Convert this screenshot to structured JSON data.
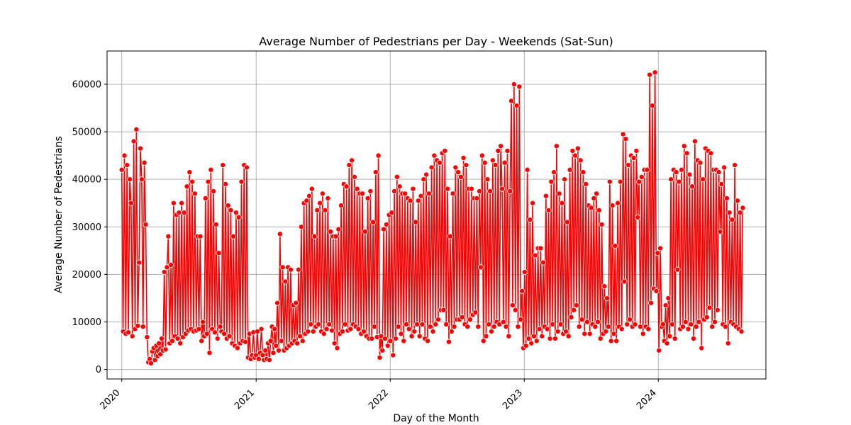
{
  "chart_data": {
    "type": "line",
    "title": "Average Number of Pedestrians per Day - Weekends (Sat-Sun)",
    "xlabel": "Day of the Month",
    "ylabel": "Average Number of Pedestrians",
    "xlim": [
      "2019-11-22",
      "2024-10-20"
    ],
    "ylim": [
      -2000,
      67000
    ],
    "x_ticks": [
      {
        "label": "2020",
        "date": "2020-01-01"
      },
      {
        "label": "2021",
        "date": "2021-01-01"
      },
      {
        "label": "2022",
        "date": "2022-01-01"
      },
      {
        "label": "2023",
        "date": "2023-01-01"
      },
      {
        "label": "2024",
        "date": "2024-01-01"
      }
    ],
    "y_ticks": [
      0,
      10000,
      20000,
      30000,
      40000,
      50000,
      60000
    ],
    "y_tick_labels": [
      "0",
      "10000",
      "20000",
      "30000",
      "40000",
      "50000",
      "60000"
    ],
    "grid": true,
    "legend": "none",
    "colors": {
      "line": "#ff0000",
      "marker_fill": "#ff0000",
      "marker_edge": "#ffffff"
    },
    "series": [
      {
        "x_start": "2020-01-01",
        "x_end": "2024-08-18",
        "values": [
          42000,
          8000,
          45000,
          7500,
          43000,
          7800,
          40000,
          35000,
          7000,
          48000,
          8500,
          50500,
          9200,
          22500,
          46500,
          40000,
          9000,
          43500,
          30500,
          6800,
          1500,
          2200,
          1300,
          3800,
          4500,
          2000,
          5000,
          2800,
          5500,
          3200,
          6500,
          4000,
          20500,
          4200,
          21500,
          28000,
          5500,
          22000,
          6000,
          35000,
          7000,
          32500,
          6500,
          33000,
          5500,
          35000,
          6800,
          33000,
          7500,
          38500,
          8200,
          41500,
          8500,
          39500,
          8000,
          37000,
          8200,
          28000,
          8500,
          28000,
          6000,
          10000,
          7000,
          36000,
          7500,
          39500,
          3500,
          42000,
          8500,
          37500,
          7800,
          30500,
          6500,
          24500,
          9000,
          8000,
          43000,
          7500,
          39000,
          6500,
          34500,
          7000,
          33500,
          5500,
          28000,
          5000,
          33000,
          4500,
          32000,
          5500,
          39500,
          6000,
          43000,
          5800,
          42500,
          2500,
          7500,
          2200,
          3000,
          7800,
          2500,
          3000,
          8000,
          2200,
          3500,
          8500,
          3000,
          2000,
          4000,
          2200,
          5500,
          2000,
          6000,
          9000,
          3500,
          8500,
          5000,
          14000,
          4000,
          28500,
          6000,
          21500,
          4000,
          18500,
          4500,
          21500,
          5000,
          21000,
          5500,
          13500,
          6000,
          14000,
          5500,
          21000,
          7000,
          30000,
          6000,
          35000,
          7500,
          35500,
          8000,
          36500,
          9500,
          38000,
          8000,
          28000,
          9000,
          33500,
          9500,
          35000,
          8000,
          37000,
          7500,
          33500,
          8500,
          36000,
          9500,
          29000,
          8200,
          28000,
          5500,
          28000,
          4500,
          29500,
          7500,
          34500,
          8000,
          39000,
          9500,
          38500,
          8200,
          43000,
          8500,
          44000,
          9500,
          40500,
          9000,
          38000,
          8500,
          37000,
          7500,
          37000,
          8000,
          29000,
          7000,
          36000,
          6500,
          37500,
          6500,
          31000,
          9000,
          41500,
          6800,
          45000,
          2500,
          7000,
          4000,
          29500,
          6500,
          30500,
          5000,
          32500,
          6000,
          33000,
          3000,
          37500,
          6500,
          40500,
          9000,
          38500,
          7500,
          37000,
          6000,
          37000,
          9500,
          36000,
          8500,
          35500,
          7000,
          38000,
          8000,
          31000,
          9500,
          35500,
          7000,
          36500,
          9500,
          40000,
          6500,
          41000,
          6000,
          37000,
          9000,
          42500,
          8000,
          45000,
          9500,
          44000,
          10500,
          43500,
          12500,
          45500,
          12500,
          46000,
          9500,
          38000,
          5800,
          28000,
          8000,
          37000,
          9000,
          42500,
          10500,
          41500,
          10500,
          40500,
          11000,
          44500,
          9500,
          43000,
          9000,
          38000,
          10500,
          38000,
          11500,
          36000,
          12000,
          36000,
          9000,
          37500,
          21500,
          45000,
          6000,
          43500,
          7000,
          40000,
          9500,
          37500,
          8000,
          44000,
          9000,
          43000,
          10000,
          46000,
          9500,
          47000,
          38000,
          10000,
          43500,
          9000,
          46000,
          7000,
          37500,
          56500,
          13500,
          60000,
          12500,
          55500,
          9000,
          59500,
          10500,
          16500,
          4500,
          20500,
          5000,
          42000,
          6500,
          31500,
          5500,
          35000,
          7000,
          24000,
          6000,
          25500,
          8500,
          25500,
          7000,
          22500,
          9000,
          36500,
          8500,
          33500,
          6500,
          39500,
          9500,
          41500,
          6500,
          47000,
          8000,
          37000,
          9500,
          35000,
          7500,
          40000,
          8000,
          31000,
          7000,
          42000,
          11000,
          46000,
          12500,
          45000,
          13500,
          46500,
          9000,
          44000,
          10500,
          41500,
          7500,
          39000,
          10000,
          34500,
          7500,
          34000,
          9500,
          36000,
          9000,
          37000,
          10000,
          33500,
          6500,
          30500,
          7500,
          17500,
          8000,
          15000,
          9000,
          39500,
          6000,
          34500,
          7500,
          26000,
          6000,
          35000,
          9000,
          39500,
          8500,
          49500,
          18500,
          48500,
          9500,
          43000,
          10500,
          45000,
          9000,
          44500,
          9500,
          46000,
          32000,
          39500,
          9000,
          40500,
          7500,
          42000,
          9000,
          42000,
          8500,
          62000,
          14000,
          55500,
          17000,
          62500,
          16500,
          24500,
          4000,
          25500,
          9000,
          9500,
          6000,
          13500,
          5500,
          15000,
          7000,
          40000,
          9500,
          42000,
          6500,
          41500,
          21000,
          39500,
          8500,
          42000,
          9000,
          47000,
          10000,
          45500,
          8500,
          41000,
          9500,
          38500,
          6500,
          48000,
          9000,
          44000,
          10000,
          43500,
          4500,
          40000,
          10500,
          46500,
          11000,
          46000,
          13000,
          45500,
          9000,
          42000,
          10000,
          42000,
          12500,
          41500,
          29000,
          39000,
          9500,
          42500,
          9000,
          36000,
          5500,
          33000,
          10000,
          31500,
          9500,
          43000,
          9000,
          35500,
          8500,
          33000,
          8000,
          34000
        ]
      }
    ]
  }
}
